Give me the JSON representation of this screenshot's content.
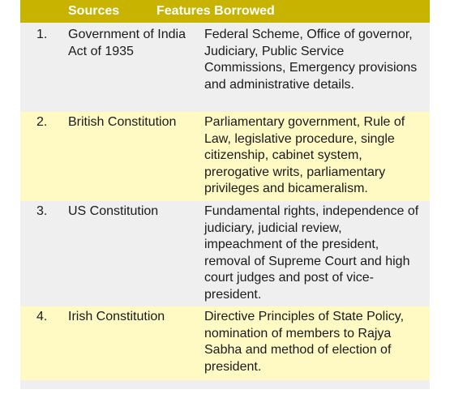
{
  "header": {
    "sources": "Sources",
    "features": "Features Borrowed"
  },
  "colors": {
    "header_bg": "#c8b400",
    "row_gray": "#efefef",
    "row_yellow": "#fffac4"
  },
  "rows": [
    {
      "num": "1.",
      "source": "Government of India Act of 1935",
      "features": "Federal Scheme, Office of governor, Judiciary, Public Service Commissions, Emergency provisions and administrative details."
    },
    {
      "num": "2.",
      "source": "British Constitution",
      "features": "Parliamentary government, Rule of Law, legislative procedure, single citizenship, cabinet system, prerogative writs, parliamentary privileges and bicameralism."
    },
    {
      "num": "3.",
      "source": "US Constitution",
      "features": "Fundamental rights, independence of judiciary, judicial review, impeachment of the president, removal of Supreme Court and high court judges and post of vice-president."
    },
    {
      "num": "4.",
      "source": "Irish Constitution",
      "features": "Directive Principles of State Policy, nomination of members to Rajya Sabha and method of election of president."
    }
  ]
}
